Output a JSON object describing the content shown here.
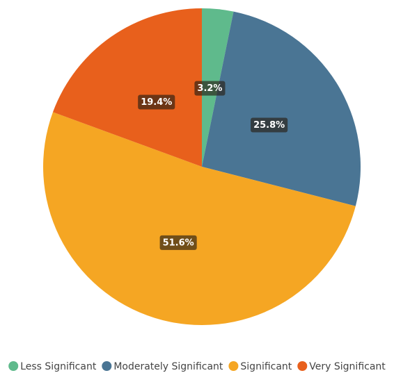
{
  "chart_data": {
    "type": "pie",
    "categories": [
      "Less Significant",
      "Moderately Significant",
      "Significant",
      "Very Significant"
    ],
    "values": [
      3.2,
      25.8,
      51.6,
      19.4
    ],
    "value_labels": [
      "3.2%",
      "25.8%",
      "51.6%",
      "19.4%"
    ],
    "colors": [
      "#5fba8c",
      "#4a7594",
      "#f5a623",
      "#e8601c"
    ],
    "legend": "bottom"
  }
}
